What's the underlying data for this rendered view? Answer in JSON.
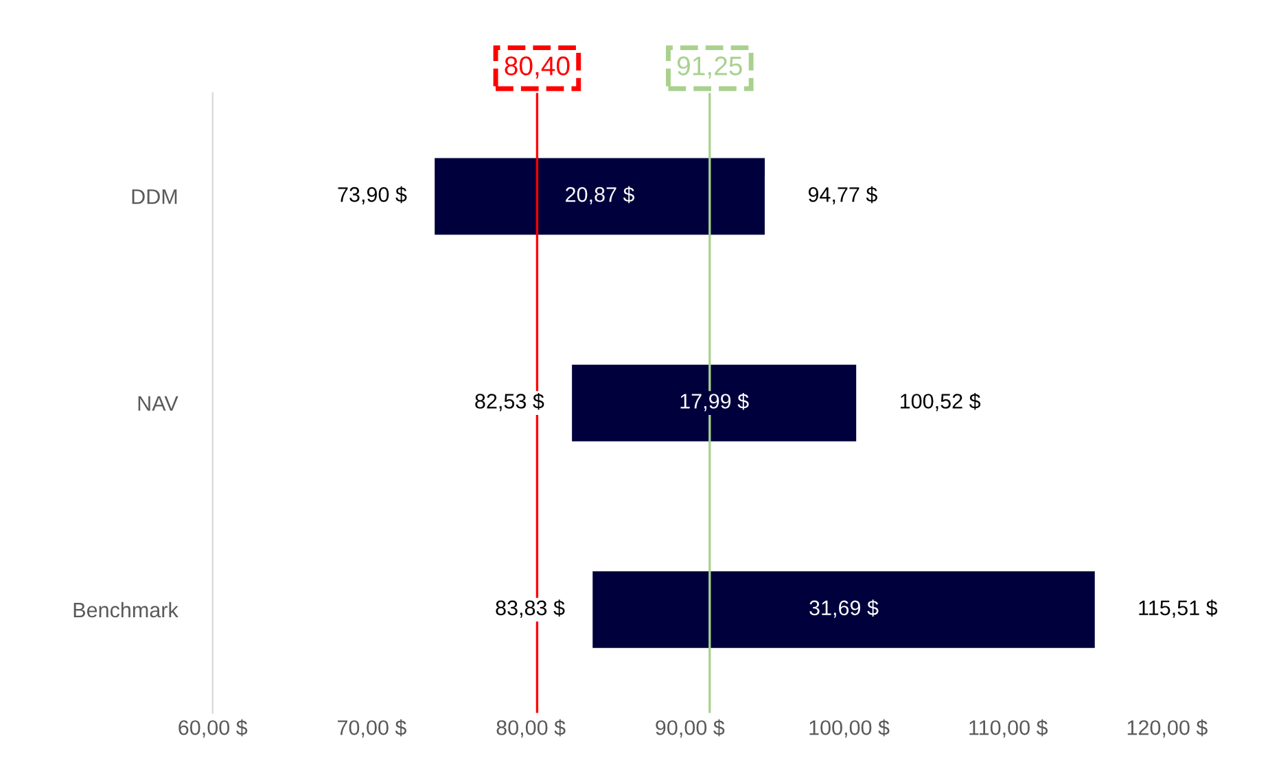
{
  "chart_data": {
    "type": "bar",
    "orientation": "horizontal",
    "categories": [
      "DDM",
      "NAV",
      "Benchmark"
    ],
    "base": [
      73.9,
      82.53,
      83.83
    ],
    "values": [
      20.87,
      17.99,
      31.69
    ],
    "value_labels": [
      "20,87 $",
      "17,99 $",
      "31,69 $"
    ],
    "color": "#00003c",
    "xlim": [
      60,
      120
    ],
    "xticks": [
      {
        "value": 60,
        "label": "60,00 $"
      },
      {
        "value": 70,
        "label": "70,00 $"
      },
      {
        "value": 80,
        "label": "80,00 $"
      },
      {
        "value": 90,
        "label": "90,00 $"
      },
      {
        "value": 100,
        "label": "100,00 $"
      },
      {
        "value": 110,
        "label": "110,00 $"
      },
      {
        "value": 120,
        "label": "120,00 $"
      }
    ],
    "ref_lines": [
      {
        "axis": "x",
        "value": 80.4,
        "label": "80,40",
        "color": "#ff0000"
      },
      {
        "axis": "x",
        "value": 91.25,
        "label": "91,25",
        "color": "#a9d18e"
      }
    ],
    "annotations": [
      {
        "text": "73,90 $",
        "x": 73.9,
        "y": "DDM"
      },
      {
        "text": "94,77 $",
        "x": 94.77,
        "y": "DDM"
      },
      {
        "text": "82,53 $",
        "x": 82.53,
        "y": "NAV"
      },
      {
        "text": "100,52 $",
        "x": 100.52,
        "y": "NAV"
      },
      {
        "text": "83,83 $",
        "x": 83.83,
        "y": "Benchmark"
      },
      {
        "text": "115,51 $",
        "x": 115.51,
        "y": "Benchmark"
      }
    ],
    "grid": false,
    "legend": false
  }
}
